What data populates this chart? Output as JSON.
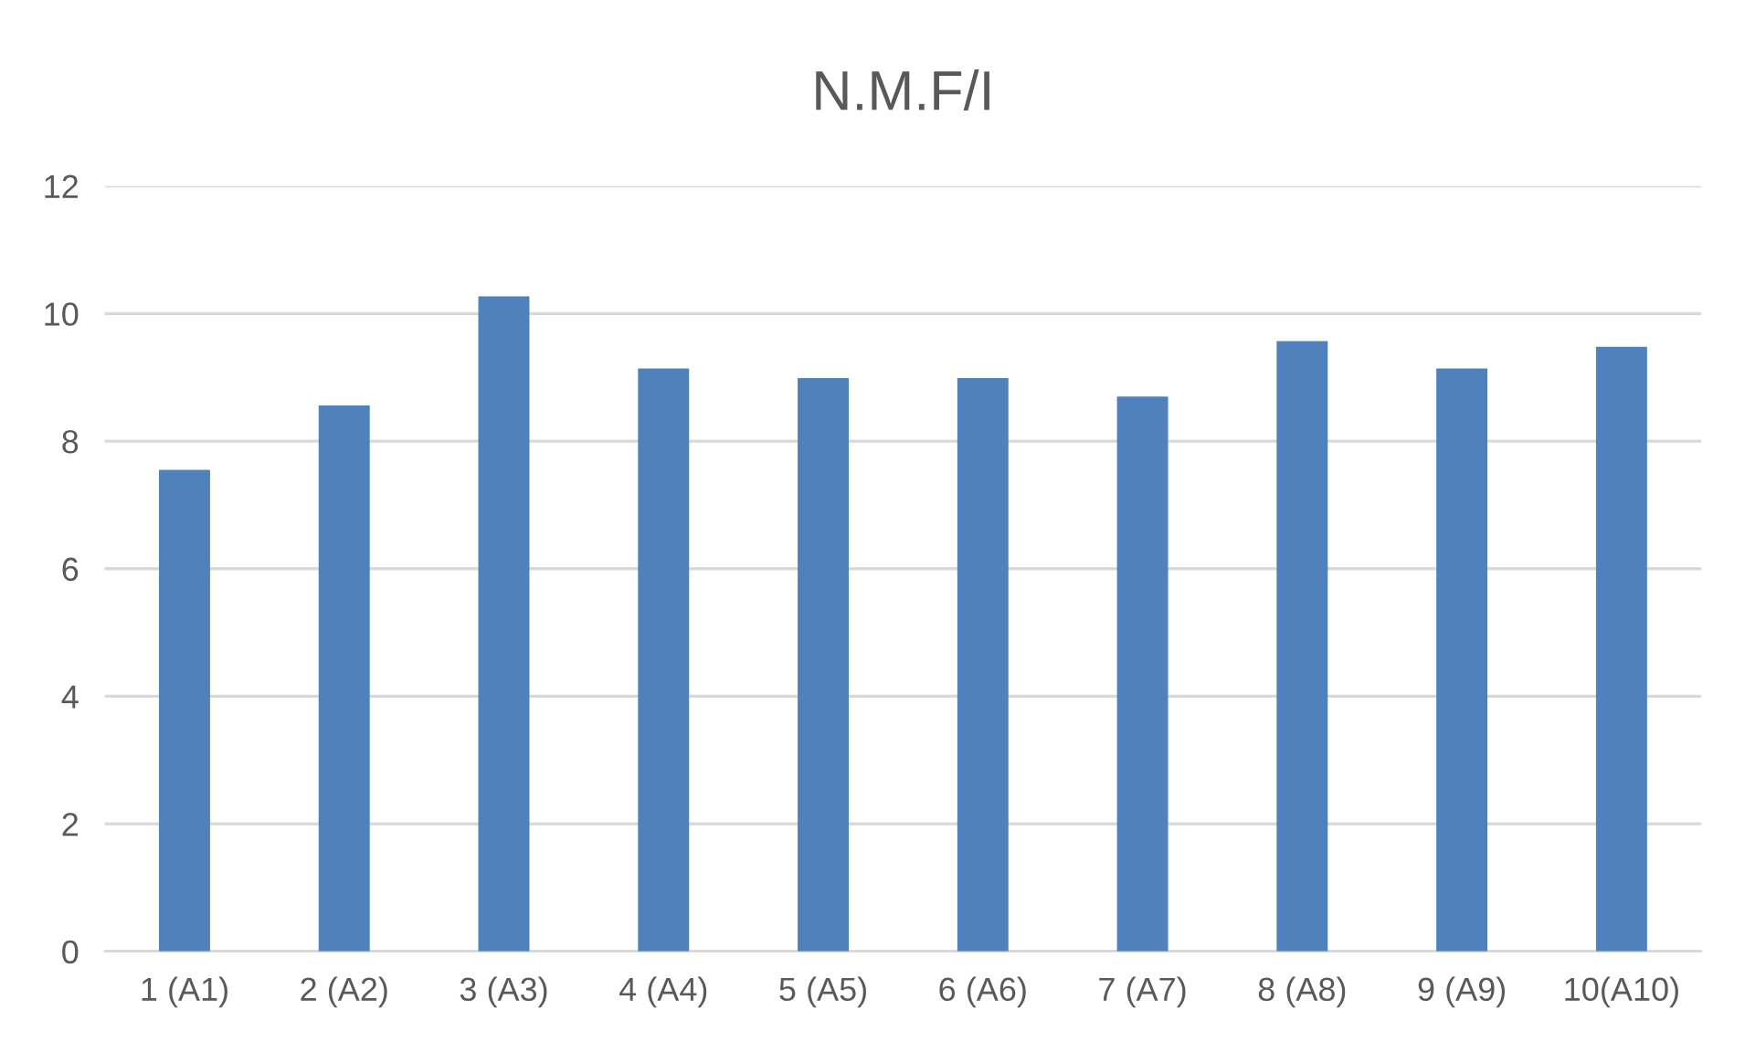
{
  "chart_data": {
    "type": "bar",
    "title": "N.M.F/I",
    "categories": [
      "1 (A1)",
      "2 (A2)",
      "3 (A3)",
      "4 (A4)",
      "5 (A5)",
      "6 (A6)",
      "7 (A7)",
      "8 (A8)",
      "9 (A9)",
      "10(A10)"
    ],
    "values": [
      7.55,
      8.56,
      10.27,
      9.14,
      8.99,
      8.99,
      8.7,
      9.57,
      9.14,
      9.48
    ],
    "color": "#4f81bd",
    "ylim": [
      0,
      12
    ],
    "yticks": [
      0,
      2,
      4,
      6,
      8,
      10,
      12
    ],
    "grid": "y"
  }
}
